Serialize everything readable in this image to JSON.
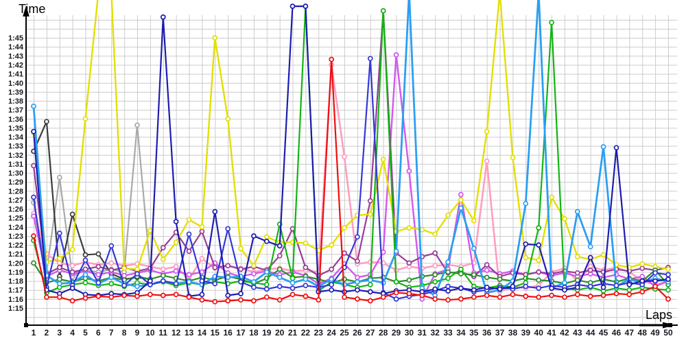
{
  "page": {
    "background": "#ffffff",
    "grid_color": "#cccccc",
    "axis_color": "#000000",
    "tick_color": "#17171f"
  },
  "chart_data": {
    "type": "line",
    "title": "",
    "xlabel": "Laps",
    "ylabel": "Time",
    "grid": true,
    "legend_position": "none",
    "marker": "open-circle-white-fill",
    "x_range": [
      1,
      50
    ],
    "x_tick_labels": [
      "1",
      "2",
      "3",
      "4",
      "5",
      "6",
      "7",
      "8",
      "9",
      "10",
      "11",
      "12",
      "13",
      "14",
      "15",
      "16",
      "17",
      "18",
      "19",
      "20",
      "21",
      "22",
      "23",
      "24",
      "25",
      "26",
      "27",
      "28",
      "29",
      "30",
      "31",
      "32",
      "33",
      "34",
      "35",
      "36",
      "37",
      "38",
      "39",
      "40",
      "41",
      "42",
      "43",
      "44",
      "45",
      "46",
      "47",
      "48",
      "49",
      "50"
    ],
    "y_tick_labels": [
      "1:15",
      "1:16",
      "1:17",
      "1:18",
      "1:19",
      "1:20",
      "1:21",
      "1:22",
      "1:23",
      "1:24",
      "1:25",
      "1:26",
      "1:27",
      "1:28",
      "1:29",
      "1:30",
      "1:31",
      "1:32",
      "1:33",
      "1:34",
      "1:35",
      "1:36",
      "1:37",
      "1:38",
      "1:39",
      "1:40",
      "1:41",
      "1:42",
      "1:43",
      "1:44",
      "1:45"
    ],
    "y_unit_note": "lap time in seconds; 75 = 1:15, 105 = 1:45; values above 107 run off the top of the plot",
    "ylim_seconds": [
      75,
      105
    ],
    "series": [
      {
        "name": "gray",
        "color": "#a9a9a9",
        "width": 2.2,
        "values": [
          86.7,
          79.0,
          89.5,
          78.5,
          79.2,
          79.0,
          79.3,
          79.0,
          95.3,
          79.3,
          null,
          null,
          null,
          null,
          null,
          null,
          null,
          null,
          null,
          null,
          null,
          null,
          null,
          null,
          null,
          null,
          null,
          null,
          null,
          null,
          null,
          null,
          null,
          null,
          null,
          null,
          null,
          null,
          null,
          null,
          null,
          null,
          null,
          null,
          null,
          null,
          null,
          null,
          null,
          null
        ]
      },
      {
        "name": "black",
        "color": "#3c3c3c",
        "width": 2.2,
        "values": [
          92.4,
          95.7,
          78.5,
          85.4,
          80.9,
          81.0,
          78.8,
          78.2,
          78.4,
          78.2,
          null,
          null,
          null,
          null,
          null,
          null,
          null,
          null,
          null,
          null,
          null,
          null,
          null,
          null,
          null,
          null,
          null,
          null,
          null,
          null,
          null,
          null,
          null,
          null,
          null,
          null,
          null,
          null,
          null,
          null,
          null,
          null,
          null,
          null,
          null,
          null,
          null,
          null,
          null,
          null
        ]
      },
      {
        "name": "pink",
        "color": "#ff9dc0",
        "width": 2.6,
        "values": [
          85.5,
          81.0,
          80.0,
          79.7,
          80.1,
          79.8,
          80.0,
          79.7,
          79.9,
          79.6,
          79.3,
          79.6,
          78.2,
          80.5,
          79.4,
          79.7,
          79.4,
          79.0,
          79.3,
          79.4,
          79.1,
          79.2,
          79.0,
          102.0,
          91.8,
          79.9,
          80.1,
          80.0,
          79.2,
          79.6,
          79.4,
          79.7,
          79.8,
          79.6,
          80.0,
          91.3,
          76.8,
          77.4,
          77.2,
          77.5,
          79.0,
          79.4,
          78.0,
          79.6,
          79.2,
          79.5,
          79.0,
          78.0,
          77.6,
          77.9
        ]
      },
      {
        "name": "magenta",
        "color": "#d258ee",
        "width": 2.4,
        "values": [
          85.2,
          78.5,
          79.2,
          78.8,
          79.1,
          78.7,
          79.0,
          78.6,
          78.9,
          79.2,
          78.8,
          79.1,
          78.7,
          79.0,
          80.0,
          78.9,
          78.5,
          78.8,
          79.1,
          78.7,
          79.0,
          78.6,
          77.7,
          78.3,
          79.9,
          78.4,
          78.7,
          81.2,
          103.1,
          90.2,
          76.0,
          78.8,
          79.3,
          87.6,
          78.9,
          79.2,
          78.8,
          79.1,
          78.7,
          79.0,
          78.6,
          78.9,
          78.5,
          78.8,
          78.4,
          78.7,
          78.2,
          78.5,
          77.4,
          78.0
        ]
      },
      {
        "name": "purple",
        "color": "#963d96",
        "width": 2.2,
        "values": [
          90.8,
          78.8,
          79.5,
          79.0,
          79.3,
          79.6,
          79.2,
          79.5,
          79.1,
          79.4,
          81.7,
          83.4,
          81.3,
          83.5,
          79.5,
          79.7,
          79.3,
          79.6,
          79.2,
          80.8,
          83.8,
          79.5,
          78.6,
          79.3,
          81.1,
          80.2,
          86.9,
          108.0,
          81.1,
          80.0,
          80.7,
          81.1,
          78.9,
          79.0,
          78.5,
          79.8,
          78.5,
          78.9,
          78.7,
          79.0,
          78.8,
          79.1,
          78.9,
          79.2,
          79.0,
          79.3,
          79.1,
          79.4,
          79.2,
          79.5
        ]
      },
      {
        "name": "yellow",
        "color": "#e3df00",
        "width": 2.4,
        "values": [
          94.5,
          80.1,
          80.5,
          81.5,
          96.0,
          110,
          110,
          79.4,
          79.3,
          83.6,
          80.4,
          82.3,
          84.8,
          84.0,
          105.0,
          96.0,
          81.6,
          79.7,
          82.9,
          82.3,
          82.3,
          82.2,
          81.4,
          82.0,
          83.9,
          85.3,
          85.4,
          91.5,
          83.5,
          83.9,
          83.7,
          83.2,
          85.3,
          87.0,
          84.7,
          94.6,
          110,
          91.7,
          80.6,
          80.3,
          87.3,
          84.9,
          80.7,
          80.4,
          80.9,
          79.8,
          79.5,
          79.9,
          79.6,
          79.3
        ]
      },
      {
        "name": "darkgreen",
        "color": "#2f8b2f",
        "width": 2.2,
        "values": [
          80.0,
          77.8,
          78.2,
          77.9,
          78.3,
          78.0,
          78.4,
          78.1,
          78.5,
          78.2,
          78.6,
          78.3,
          78.0,
          78.4,
          78.1,
          78.5,
          78.2,
          77.7,
          78.3,
          79.3,
          78.4,
          78.5,
          78.2,
          77.8,
          78.2,
          77.9,
          78.3,
          78.4,
          77.9,
          78.1,
          78.5,
          78.7,
          79.0,
          78.8,
          78.7,
          78.4,
          78.2,
          78.0,
          78.3,
          78.1,
          78.0,
          77.7,
          78.1,
          77.8,
          78.2,
          77.9,
          78.3,
          78.0,
          79.2,
          77.6
        ]
      },
      {
        "name": "green",
        "color": "#12b412",
        "width": 2.2,
        "values": [
          82.5,
          76.7,
          77.3,
          77.6,
          77.8,
          77.5,
          77.7,
          77.4,
          77.8,
          77.6,
          77.9,
          77.5,
          77.8,
          77.6,
          77.9,
          77.7,
          78.0,
          77.8,
          77.6,
          84.3,
          78.3,
          108.5,
          76.9,
          77.9,
          77.6,
          77.3,
          77.6,
          108.0,
          77.9,
          77.3,
          77.5,
          77.9,
          78.3,
          79.3,
          77.4,
          77.2,
          77.5,
          77.3,
          77.8,
          83.9,
          106.7,
          77.2,
          77.0,
          77.3,
          76.9,
          77.2,
          77.0,
          77.3,
          77.1,
          77.0
        ]
      },
      {
        "name": "skyblue",
        "color": "#2b9ff2",
        "width": 2.8,
        "values": [
          97.4,
          78.6,
          77.7,
          77.8,
          78.7,
          77.7,
          78.4,
          77.7,
          77.4,
          77.6,
          78.0,
          77.7,
          77.9,
          77.6,
          78.5,
          78.4,
          78.5,
          77.9,
          79.0,
          78.4,
          77.8,
          78.2,
          77.4,
          78.2,
          77.6,
          77.9,
          78.1,
          77.8,
          81.3,
          110,
          77.2,
          76.4,
          80.1,
          86.1,
          81.6,
          76.7,
          77.0,
          78.0,
          86.6,
          110,
          77.2,
          77.8,
          85.7,
          81.8,
          92.9,
          77.4,
          78.2,
          77.8,
          78.3,
          77.9
        ]
      },
      {
        "name": "blue",
        "color": "#3338d8",
        "width": 2.2,
        "values": [
          87.3,
          77.3,
          83.3,
          77.5,
          80.3,
          77.8,
          81.9,
          77.5,
          78.8,
          77.6,
          78.0,
          77.7,
          83.2,
          78.0,
          77.7,
          83.8,
          77.9,
          77.3,
          77.1,
          77.4,
          77.2,
          77.5,
          77.3,
          77.6,
          79.5,
          82.9,
          102.7,
          76.7,
          76.0,
          76.3,
          76.5,
          76.9,
          77.4,
          77.2,
          76.8,
          77.0,
          77.3,
          77.1,
          77.4,
          77.2,
          77.5,
          77.3,
          77.6,
          77.4,
          77.7,
          77.5,
          77.8,
          77.6,
          78.9,
          78.7
        ]
      },
      {
        "name": "navy",
        "color": "#1c1cb0",
        "width": 2.2,
        "values": [
          94.6,
          77.0,
          76.6,
          77.2,
          76.5,
          76.4,
          76.6,
          76.5,
          76.7,
          78.0,
          107.3,
          84.6,
          76.3,
          76.5,
          85.7,
          76.4,
          76.6,
          83.0,
          82.4,
          81.9,
          108.5,
          108.5,
          76.8,
          77.0,
          76.8,
          77.0,
          76.8,
          76.6,
          76.9,
          77.0,
          76.8,
          77.1,
          76.9,
          77.2,
          77.0,
          77.3,
          77.1,
          77.4,
          82.1,
          82.0,
          77.2,
          77.0,
          77.3,
          80.6,
          77.3,
          92.8,
          77.6,
          78.0,
          78.0,
          78.2
        ]
      },
      {
        "name": "red",
        "color": "#ef0e0e",
        "width": 2.2,
        "values": [
          83.0,
          76.2,
          76.2,
          75.8,
          76.1,
          76.3,
          76.2,
          76.4,
          76.3,
          76.5,
          76.4,
          76.5,
          76.2,
          75.9,
          75.7,
          75.8,
          75.9,
          75.8,
          76.2,
          75.9,
          76.5,
          76.3,
          75.9,
          102.6,
          76.2,
          76.0,
          75.8,
          76.2,
          76.7,
          76.6,
          76.4,
          76.0,
          75.9,
          76.0,
          76.2,
          76.4,
          76.2,
          76.5,
          76.3,
          76.2,
          76.4,
          76.2,
          76.5,
          76.3,
          76.4,
          76.6,
          76.5,
          76.8,
          77.4,
          76.0
        ]
      }
    ]
  }
}
